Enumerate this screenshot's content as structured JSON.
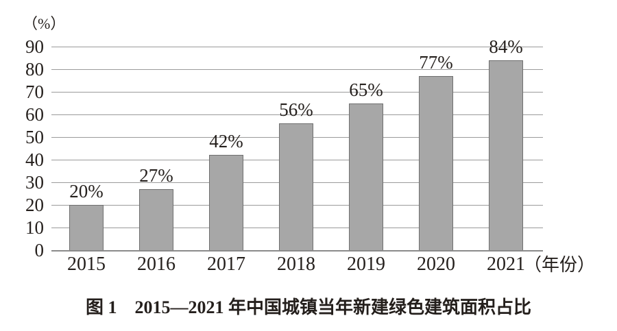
{
  "figure": {
    "unit_label": "（%）",
    "x_axis_suffix": "（年份）",
    "caption": "图 1　2015—2021 年中国城镇当年新建绿色建筑面积占比"
  },
  "chart_data": {
    "type": "bar",
    "title": "图1 2015—2021年中国城镇当年新建绿色建筑面积占比",
    "xlabel": "年份",
    "ylabel": "%",
    "categories": [
      "2015",
      "2016",
      "2017",
      "2018",
      "2019",
      "2020",
      "2021"
    ],
    "values": [
      20,
      27,
      42,
      56,
      65,
      77,
      84
    ],
    "data_labels": [
      "20%",
      "27%",
      "42%",
      "56%",
      "65%",
      "77%",
      "84%"
    ],
    "yticks": [
      0,
      10,
      20,
      30,
      40,
      50,
      60,
      70,
      80,
      90
    ],
    "ylim": [
      0,
      90
    ],
    "grid": true,
    "legend": false,
    "bar_color": "#a7a7a7",
    "bar_border_color": "#6f6f6f",
    "gridline_color": "#9a9a9a",
    "text_color": "#241f1c"
  }
}
